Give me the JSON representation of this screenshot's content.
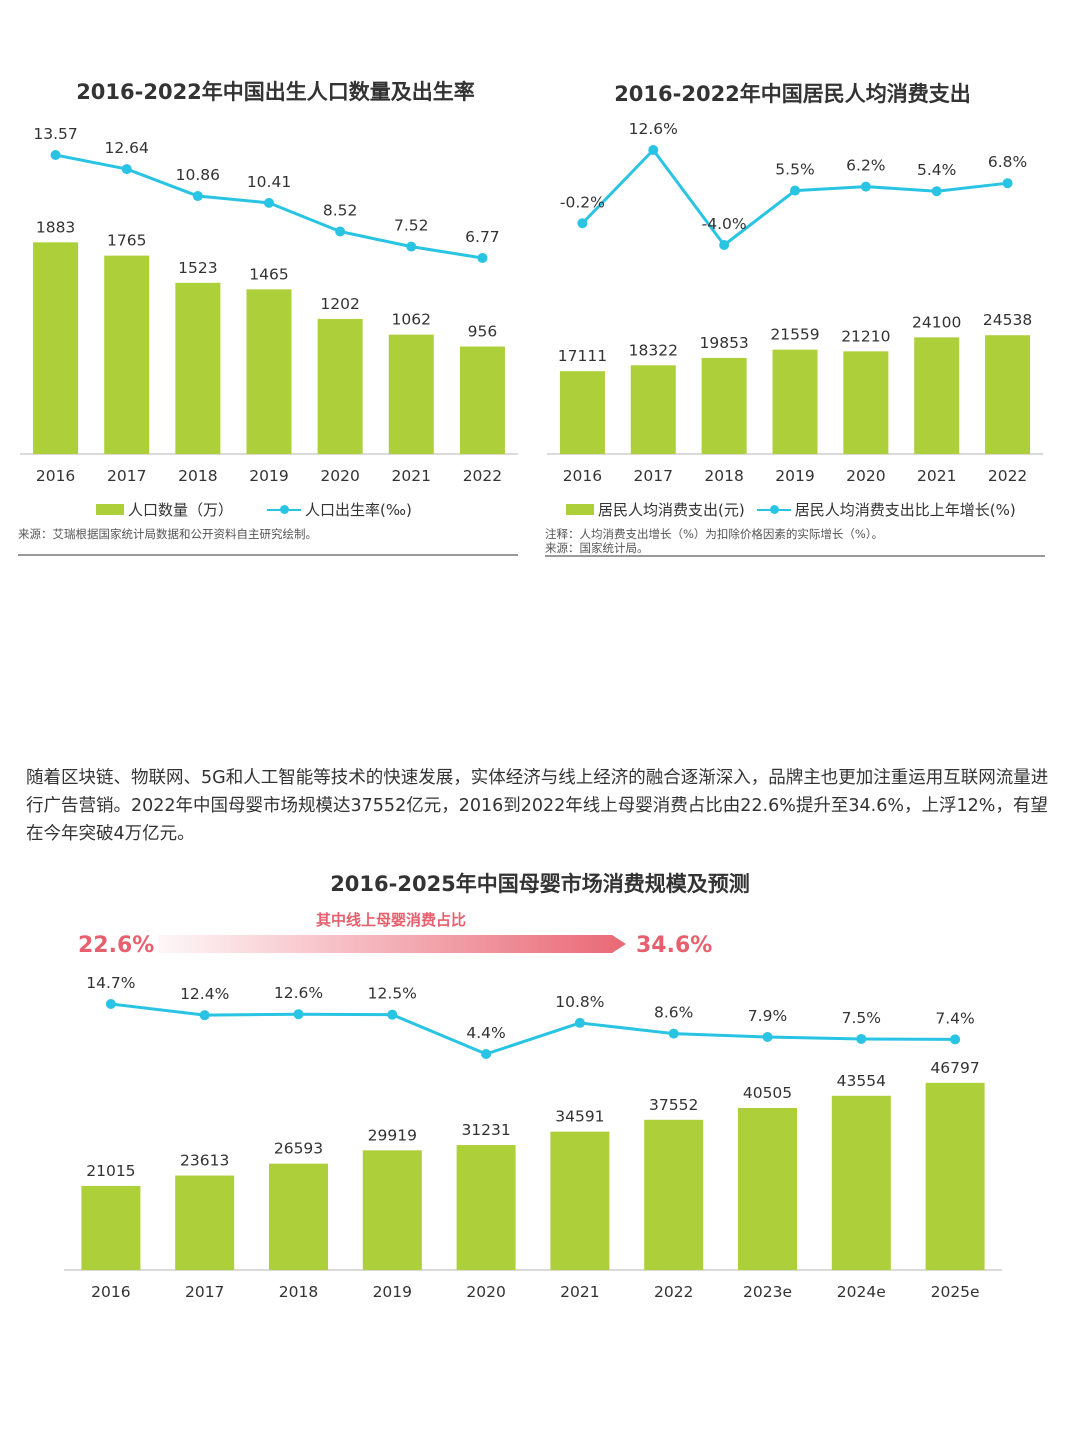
{
  "colors": {
    "bar": "#adcf3a",
    "line": "#29c4e3",
    "accent_red": "#e8606e",
    "axis": "#cfcfcf",
    "text": "#333333"
  },
  "chart_data": [
    {
      "type": "bar+line",
      "title": "2016-2022年中国出生人口数量及出生率",
      "categories": [
        "2016",
        "2017",
        "2018",
        "2019",
        "2020",
        "2021",
        "2022"
      ],
      "series": [
        {
          "name": "人口数量（万）",
          "type": "bar",
          "values": [
            1883,
            1765,
            1523,
            1465,
            1202,
            1062,
            956
          ]
        },
        {
          "name": "人口出生率(‰)",
          "type": "line",
          "values": [
            13.57,
            12.64,
            10.86,
            10.41,
            8.52,
            7.52,
            6.77
          ]
        }
      ],
      "bar_labels": [
        "1883",
        "1765",
        "1523",
        "1465",
        "1202",
        "1062",
        "956"
      ],
      "line_labels": [
        "13.57",
        "12.64",
        "10.86",
        "10.41",
        "8.52",
        "7.52",
        "6.77"
      ],
      "legend_position": "bottom",
      "notes": [
        "来源：艾瑞根据国家统计局数据和公开资料自主研究绘制。"
      ]
    },
    {
      "type": "bar+line",
      "title": "2016-2022年中国居民人均消费支出",
      "categories": [
        "2016",
        "2017",
        "2018",
        "2019",
        "2020",
        "2021",
        "2022"
      ],
      "series": [
        {
          "name": "居民人均消费支出(元)",
          "type": "bar",
          "values": [
            17111,
            18322,
            19853,
            21559,
            21210,
            24100,
            24538
          ]
        },
        {
          "name": "居民人均消费支出比上年增长(%)",
          "type": "line",
          "values": [
            -0.2,
            12.6,
            -4.0,
            5.5,
            6.2,
            5.4,
            6.8
          ]
        }
      ],
      "bar_labels": [
        "17111",
        "18322",
        "19853",
        "21559",
        "21210",
        "24100",
        "24538"
      ],
      "line_labels": [
        "-0.2%",
        "12.6%",
        "-4.0%",
        "5.5%",
        "6.2%",
        "5.4%",
        "6.8%"
      ],
      "legend_position": "bottom",
      "notes": [
        "注释：人均消费支出增长（%）为扣除价格因素的实际增长（%）。",
        "来源：国家统计局。"
      ]
    },
    {
      "type": "bar+line",
      "title": "2016-2025年中国母婴市场消费规模及预测",
      "categories": [
        "2016",
        "2017",
        "2018",
        "2019",
        "2020",
        "2021",
        "2022",
        "2023e",
        "2024e",
        "2025e"
      ],
      "series": [
        {
          "type": "bar",
          "values": [
            21015,
            23613,
            26593,
            29919,
            31231,
            34591,
            37552,
            40505,
            43554,
            46797
          ]
        },
        {
          "type": "line",
          "values": [
            14.7,
            12.4,
            12.6,
            12.5,
            4.4,
            10.8,
            8.6,
            7.9,
            7.5,
            7.4
          ]
        }
      ],
      "bar_labels": [
        "21015",
        "23613",
        "26593",
        "29919",
        "31231",
        "34591",
        "37552",
        "40505",
        "43554",
        "46797"
      ],
      "line_labels": [
        "14.7%",
        "12.4%",
        "12.6%",
        "12.5%",
        "4.4%",
        "10.8%",
        "8.6%",
        "7.9%",
        "7.5%",
        "7.4%"
      ],
      "annotation": {
        "label": "其中线上母婴消费占比",
        "from": "22.6%",
        "to": "34.6%"
      }
    }
  ],
  "paragraph": "随着区块链、物联网、5G和人工智能等技术的快速发展，实体经济与线上经济的融合逐渐深入，品牌主也更加注重运用互联网流量进行广告营销。2022年中国母婴市场规模达37552亿元，2016到2022年线上母婴消费占比由22.6%提升至34.6%，上浮12%，有望在今年突破4万亿元。"
}
